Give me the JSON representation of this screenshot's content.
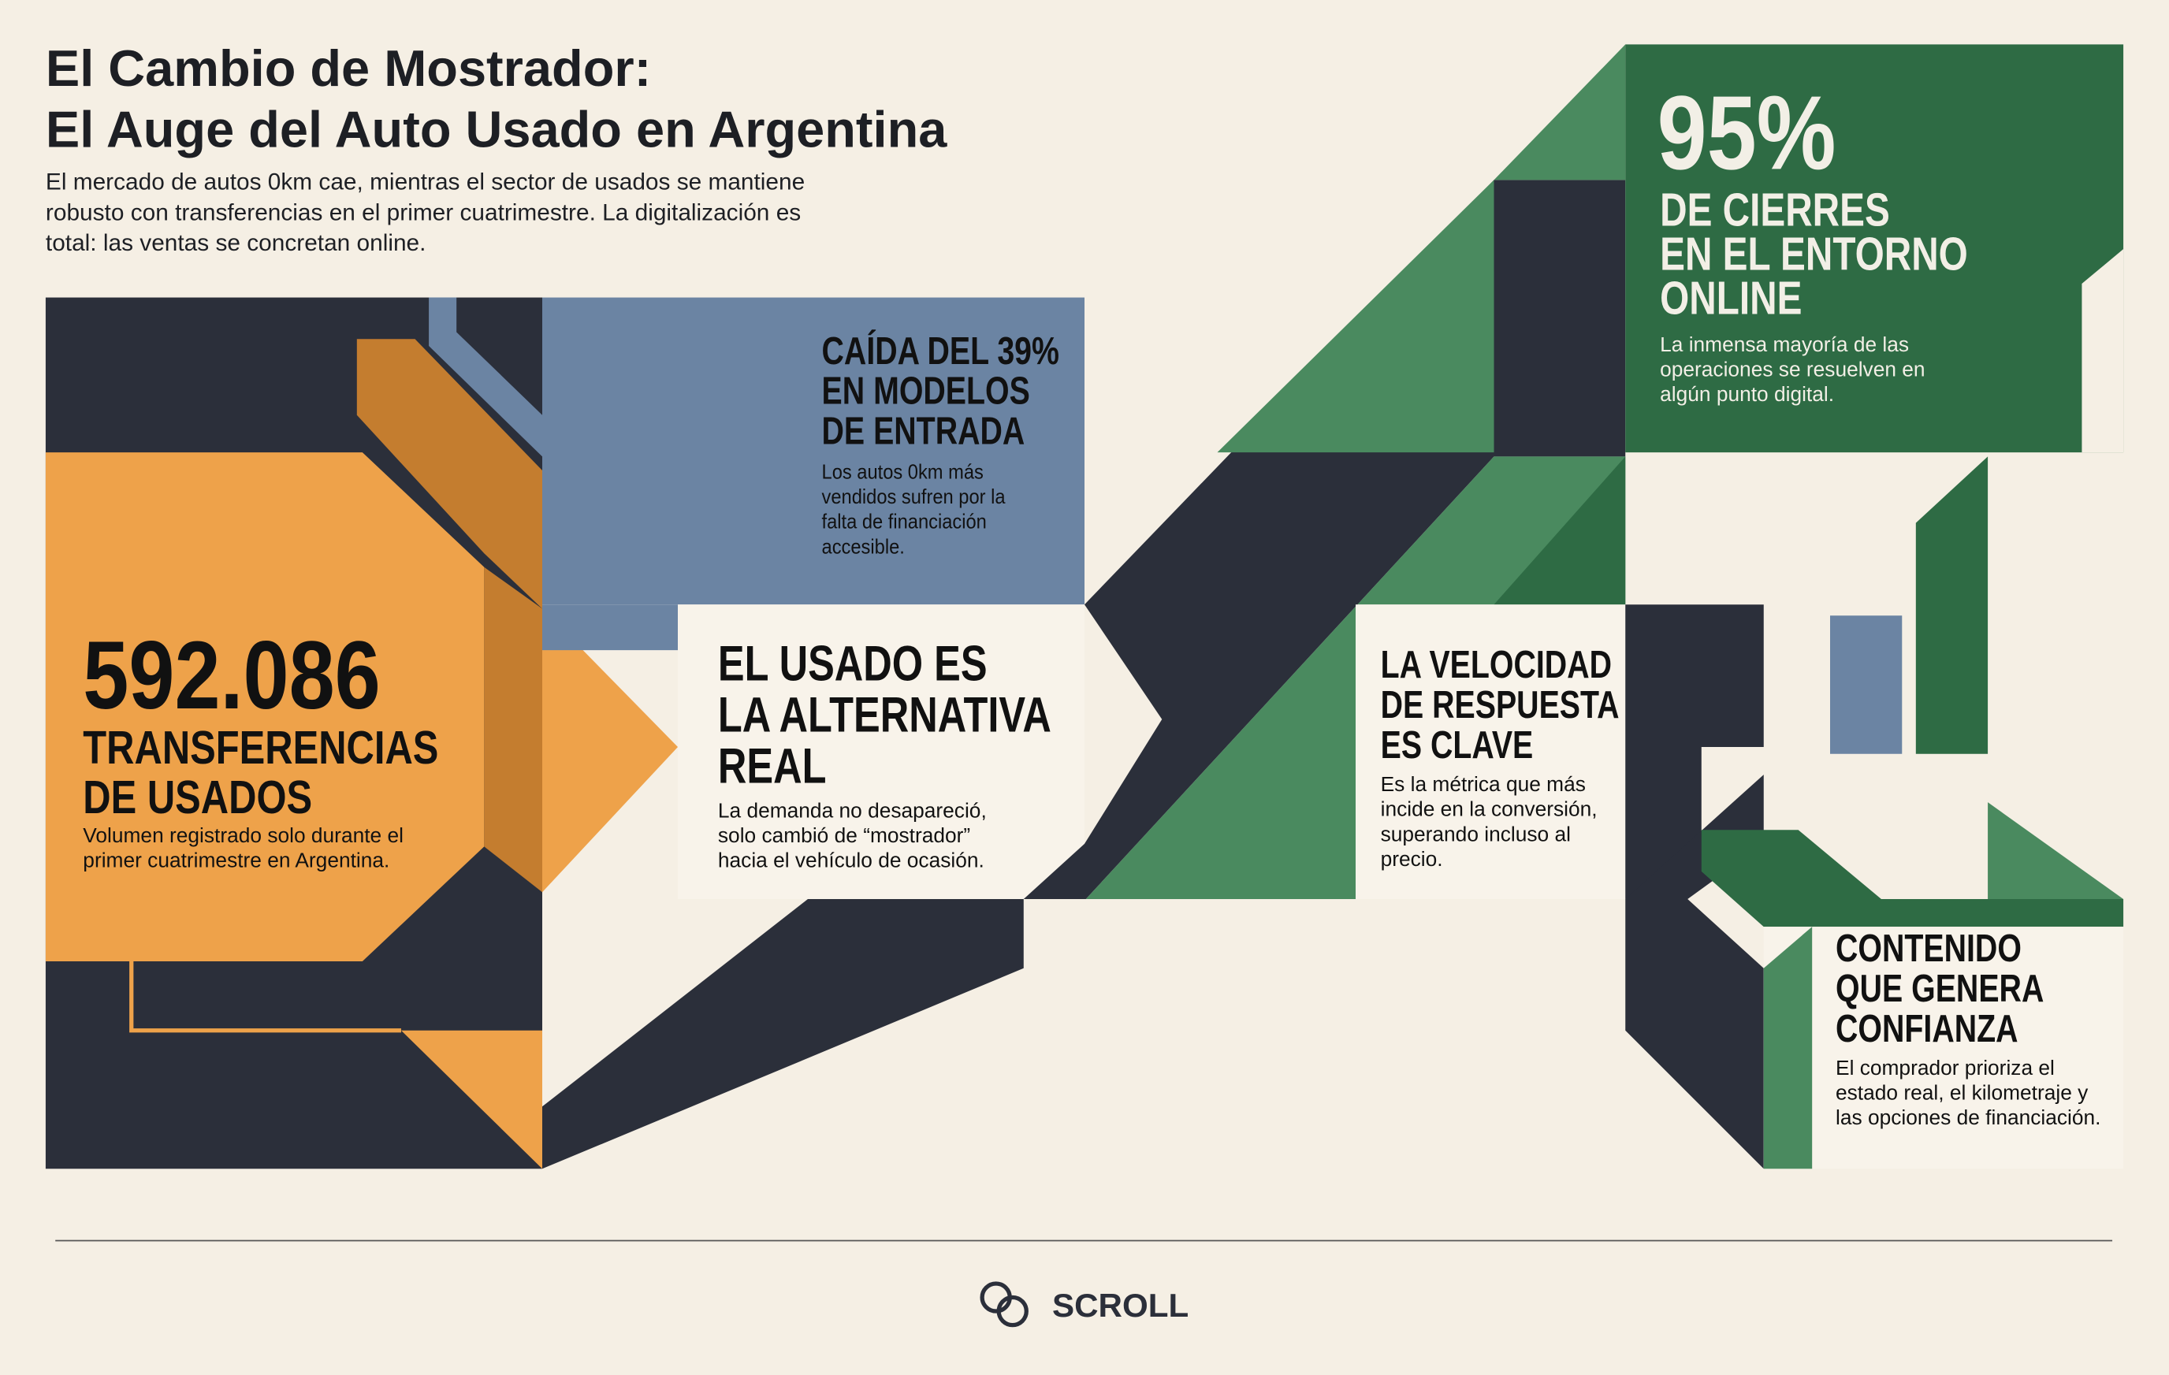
{
  "header": {
    "title": [
      "El Cambio de Mostrador:",
      "El Auge del Auto Usado en Argentina"
    ],
    "subtitle": [
      "El mercado de autos 0km cae, mientras el sector de usados se mantiene",
      "robusto con transferencias en el primer cuatrimestre. La digitalización es",
      "total: las ventas se concretan online."
    ]
  },
  "used": {
    "value": "592.086",
    "label": [
      "TRANSFERENCIAS",
      "DE USADOS"
    ],
    "note": [
      "Volumen registrado solo durante el",
      "primer cuatrimestre en Argentina."
    ]
  },
  "drop": {
    "heading": [
      "CAÍDA DEL 39%",
      "EN MODELOS",
      "DE ENTRADA"
    ],
    "body": [
      "Los autos 0km más",
      "vendidos sufren por la",
      "falta de financiación",
      "accesible."
    ]
  },
  "alternative": {
    "heading": [
      "EL USADO ES",
      "LA ALTERNATIVA",
      "REAL"
    ],
    "body": [
      "La demanda no desapareció,",
      "solo cambió de “mostrador”",
      "hacia el vehículo de ocasión."
    ]
  },
  "online": {
    "value": "95%",
    "heading": [
      "DE CIERRES",
      "EN EL ENTORNO",
      "ONLINE"
    ],
    "body": [
      "La inmensa mayoría de las",
      "operaciones se resuelven en",
      "algún punto digital."
    ]
  },
  "speed": {
    "heading": [
      "LA VELOCIDAD",
      "DE RESPUESTA",
      "ES CLAVE"
    ],
    "body": [
      "Es la métrica que más",
      "incide en la conversión,",
      "superando incluso al",
      "precio."
    ]
  },
  "trust": {
    "heading": [
      "CONTENIDO",
      "QUE GENERA",
      "CONFIANZA"
    ],
    "body": [
      "El comprador prioriza el",
      "estado real, el kilometraje y",
      "las opciones de financiación."
    ]
  },
  "footer": {
    "brand": "SCROLL"
  }
}
